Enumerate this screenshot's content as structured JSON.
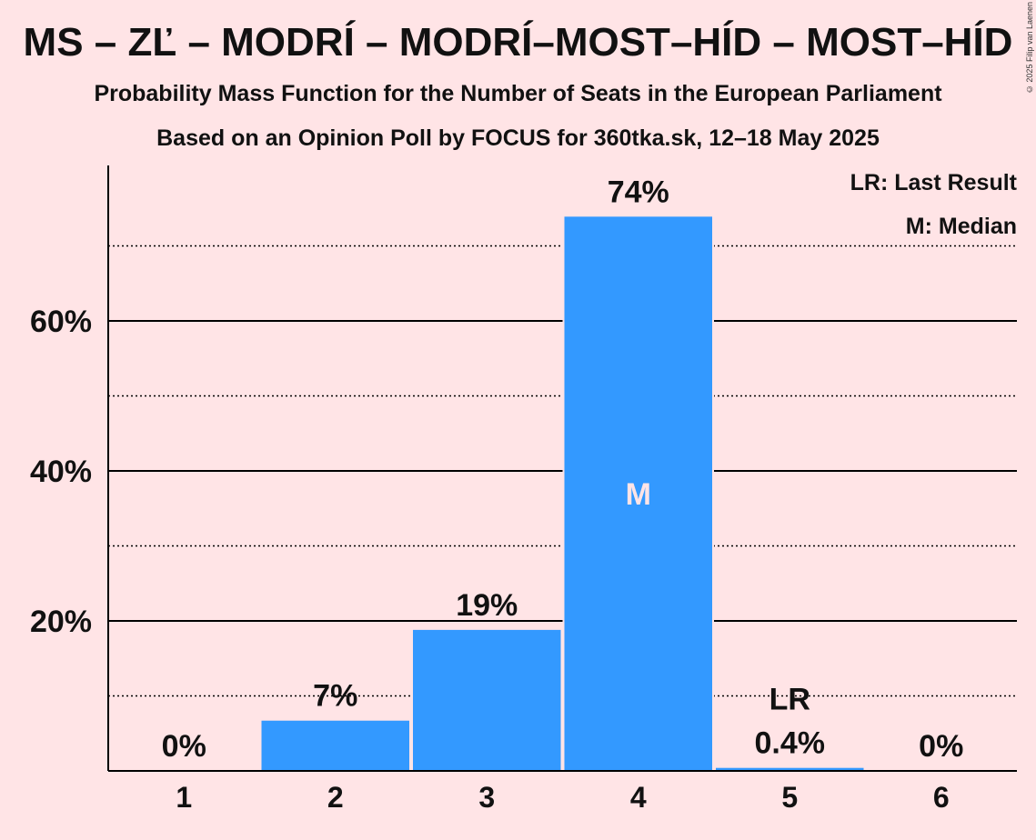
{
  "title": "MS – ZĽ – MODRÍ – MODRÍ–MOST–HÍD – MOST–HÍD",
  "subtitle1": "Probability Mass Function for the Number of Seats in the European Parliament",
  "subtitle2": "Based on an Opinion Poll by FOCUS for 360tka.sk, 12–18 May 2025",
  "copyright": "© 2025 Filip van Laenen",
  "legend": {
    "last_result": "LR: Last Result",
    "median": "M: Median"
  },
  "colors": {
    "background": "#FFE4E6",
    "bar": "#3399FF",
    "median_label": "#FFE4E6"
  },
  "chart_data": {
    "type": "bar",
    "title": "MS – ZĽ – MODRÍ – MODRÍ–MOST–HÍD – MOST–HÍD",
    "xlabel": "",
    "ylabel": "",
    "categories": [
      "1",
      "2",
      "3",
      "4",
      "5",
      "6"
    ],
    "values": [
      0,
      6.7,
      18.8,
      73.9,
      0.4,
      0
    ],
    "value_labels": [
      "0%",
      "7%",
      "19%",
      "74%",
      "0.4%",
      "0%"
    ],
    "ylim": [
      0,
      80
    ],
    "yticks": [
      20,
      40,
      60
    ],
    "ytick_labels": [
      "20%",
      "40%",
      "60%"
    ],
    "minor_gridlines": [
      10,
      30,
      50,
      70
    ],
    "median_category": "4",
    "median_marker": "M",
    "last_result_category": "5",
    "last_result_marker": "LR",
    "legend_position": "top-right",
    "grid": true
  }
}
